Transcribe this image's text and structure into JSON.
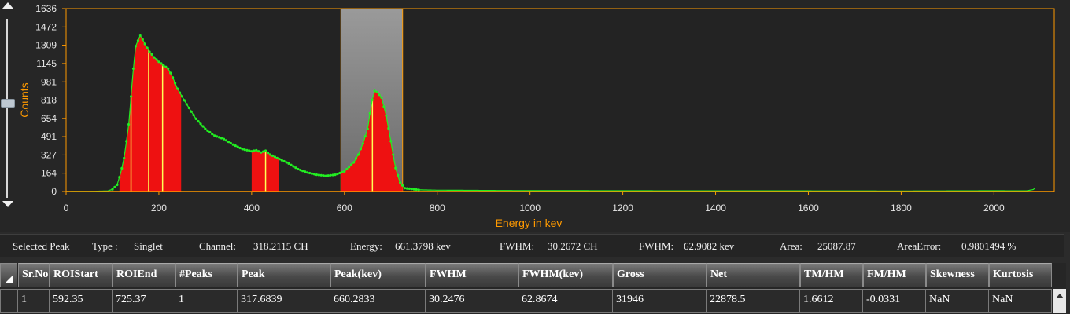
{
  "chart_data": {
    "type": "line",
    "xlabel": "Energy in kev",
    "ylabel": "Counts",
    "xlim": [
      0,
      2130
    ],
    "ylim": [
      0,
      1636
    ],
    "x_ticks": [
      "0",
      "200",
      "400",
      "600",
      "800",
      "1000",
      "1200",
      "1400",
      "1600",
      "1800",
      "2000"
    ],
    "x_tick_values": [
      0,
      200,
      400,
      600,
      800,
      1000,
      1200,
      1400,
      1600,
      1800,
      2000
    ],
    "y_ticks": [
      "0",
      "164",
      "327",
      "491",
      "654",
      "818",
      "981",
      "1145",
      "1309",
      "1472",
      "1636"
    ],
    "y_tick_values": [
      0,
      164,
      327,
      491,
      654,
      818,
      981,
      1145,
      1309,
      1472,
      1636
    ],
    "grid": false,
    "colors": {
      "spectrum": "#22ee22",
      "roi_fill": "#ee1111",
      "peak_line": "#ffff55",
      "axis": "#ff9a00",
      "selection": "#8a8a8a"
    },
    "series": [
      {
        "x": [
          0,
          60,
          90,
          100,
          110,
          118,
          125,
          135,
          145,
          150,
          160,
          170,
          180,
          190,
          200,
          210,
          220,
          230,
          240,
          260,
          280,
          300,
          320,
          340,
          360,
          380,
          400,
          410,
          420,
          430,
          440,
          460,
          480,
          500,
          520,
          540,
          560,
          580,
          600,
          620,
          630,
          640,
          650,
          655,
          660,
          665,
          670,
          680,
          690,
          700,
          710,
          720,
          730,
          760,
          800,
          900,
          1000,
          1200,
          1400,
          1600,
          1800,
          2000,
          2070,
          2085,
          2090
        ],
        "y": [
          0,
          2,
          5,
          20,
          60,
          170,
          300,
          600,
          1100,
          1300,
          1400,
          1320,
          1250,
          1200,
          1160,
          1130,
          1100,
          1020,
          920,
          780,
          650,
          560,
          500,
          470,
          420,
          380,
          360,
          370,
          350,
          365,
          330,
          290,
          250,
          200,
          170,
          150,
          140,
          150,
          180,
          260,
          330,
          430,
          560,
          700,
          820,
          900,
          890,
          840,
          680,
          450,
          210,
          80,
          30,
          15,
          12,
          10,
          8,
          7,
          6,
          6,
          5,
          7,
          6,
          18,
          40
        ]
      }
    ],
    "rois": [
      {
        "start": 115,
        "end": 248,
        "peaks": [
          140,
          178,
          208
        ]
      },
      {
        "start": 400,
        "end": 458,
        "peaks": [
          430
        ]
      },
      {
        "start": 592.35,
        "end": 725.37,
        "peaks": [
          660.2833
        ]
      }
    ],
    "selected_roi": {
      "start": 592.35,
      "end": 725.37
    }
  },
  "peak_info": {
    "selected_label": "Selected Peak",
    "type_label": "Type :",
    "type_value": "Singlet",
    "channel_label": "Channel:",
    "channel_value": "318.2115 CH",
    "energy_label": "Energy:",
    "energy_value": "661.3798 kev",
    "fwhm_ch_label": "FWHM:",
    "fwhm_ch_value": "30.2672 CH",
    "fwhm_kev_label": "FWHM:",
    "fwhm_kev_value": "62.9082 kev",
    "area_label": "Area:",
    "area_value": "25087.87",
    "area_error_label": "AreaError:",
    "area_error_value": "0.9801494 %"
  },
  "table": {
    "columns": [
      "Sr.No",
      "ROIStart",
      "ROIEnd",
      "#Peaks",
      "Peak",
      "Peak(kev)",
      "FWHM",
      "FWHM(kev)",
      "Gross",
      "Net",
      "TM/HM",
      "FM/HM",
      "Skewness",
      "Kurtosis"
    ],
    "rows": [
      [
        "1",
        "592.35",
        "725.37",
        "1",
        "317.6839",
        "660.2833",
        "30.2476",
        "62.8674",
        "31946",
        "22878.5",
        "1.6612",
        "-0.0331",
        "NaN",
        "NaN"
      ]
    ]
  }
}
